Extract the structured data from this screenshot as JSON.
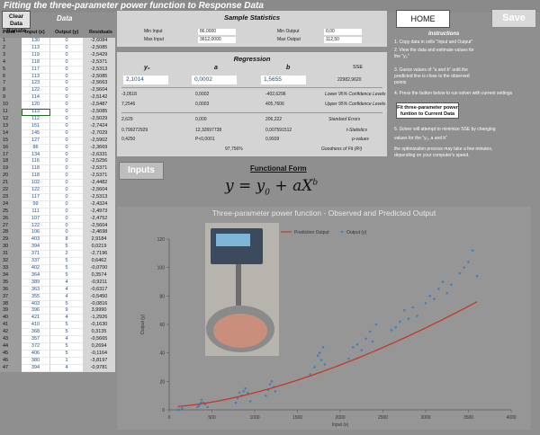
{
  "header": {
    "title": "Fitting the three-parameter power function to  Response Data"
  },
  "table_panel": {
    "clear_button": "Clear Data Ranate",
    "title": "Data",
    "columns": {
      "point": "Point",
      "input": "Input (x)",
      "output": "Output (y)",
      "residuals": "Residuals"
    },
    "rows": [
      {
        "p": "1",
        "x": "130",
        "y": "0",
        "r": "-2,6084"
      },
      {
        "p": "2",
        "x": "113",
        "y": "0",
        "r": "-2,5085"
      },
      {
        "p": "3",
        "x": "119",
        "y": "0",
        "r": "-2,5429"
      },
      {
        "p": "4",
        "x": "118",
        "y": "0",
        "r": "-2,5371"
      },
      {
        "p": "5",
        "x": "117",
        "y": "0",
        "r": "-2,5313"
      },
      {
        "p": "6",
        "x": "113",
        "y": "0",
        "r": "-2,5085"
      },
      {
        "p": "7",
        "x": "123",
        "y": "0",
        "r": "-2,5663"
      },
      {
        "p": "8",
        "x": "122",
        "y": "0",
        "r": "-2,5604"
      },
      {
        "p": "9",
        "x": "114",
        "y": "0",
        "r": "-2,5142"
      },
      {
        "p": "10",
        "x": "120",
        "y": "0",
        "r": "-2,5487"
      },
      {
        "p": "11",
        "x": "113",
        "y": "0",
        "r": "-2,5085"
      },
      {
        "p": "12",
        "x": "112",
        "y": "0",
        "r": "-2,5029"
      },
      {
        "p": "13",
        "x": "151",
        "y": "0",
        "r": "-2,7424"
      },
      {
        "p": "14",
        "x": "145",
        "y": "0",
        "r": "-2,7029"
      },
      {
        "p": "15",
        "x": "127",
        "y": "0",
        "r": "-2,5902"
      },
      {
        "p": "16",
        "x": "86",
        "y": "0",
        "r": "-2,3669"
      },
      {
        "p": "17",
        "x": "134",
        "y": "0",
        "r": "-2,6331"
      },
      {
        "p": "18",
        "x": "116",
        "y": "0",
        "r": "-2,5256"
      },
      {
        "p": "19",
        "x": "118",
        "y": "0",
        "r": "-2,5371"
      },
      {
        "p": "20",
        "x": "118",
        "y": "0",
        "r": "-2,5371"
      },
      {
        "p": "21",
        "x": "102",
        "y": "0",
        "r": "-2,4482"
      },
      {
        "p": "22",
        "x": "122",
        "y": "0",
        "r": "-2,5604"
      },
      {
        "p": "23",
        "x": "117",
        "y": "0",
        "r": "-2,5313"
      },
      {
        "p": "24",
        "x": "99",
        "y": "0",
        "r": "-2,4324"
      },
      {
        "p": "25",
        "x": "111",
        "y": "0",
        "r": "-2,4973"
      },
      {
        "p": "26",
        "x": "107",
        "y": "0",
        "r": "-2,4752"
      },
      {
        "p": "27",
        "x": "122",
        "y": "0",
        "r": "-2,5604"
      },
      {
        "p": "28",
        "x": "106",
        "y": "0",
        "r": "-2,4698"
      },
      {
        "p": "29",
        "x": "403",
        "y": "8",
        "r": "2,9184"
      },
      {
        "p": "30",
        "x": "394",
        "y": "5",
        "r": "0,0219"
      },
      {
        "p": "31",
        "x": "371",
        "y": "2",
        "r": "-2,7196"
      },
      {
        "p": "32",
        "x": "337",
        "y": "5",
        "r": "0,6462"
      },
      {
        "p": "33",
        "x": "402",
        "y": "5",
        "r": "-0,0700"
      },
      {
        "p": "34",
        "x": "364",
        "y": "5",
        "r": "0,3574"
      },
      {
        "p": "35",
        "x": "389",
        "y": "4",
        "r": "-0,9211"
      },
      {
        "p": "36",
        "x": "363",
        "y": "4",
        "r": "-0,6317"
      },
      {
        "p": "37",
        "x": "355",
        "y": "4",
        "r": "-0,5450"
      },
      {
        "p": "38",
        "x": "403",
        "y": "5",
        "r": "-0,0816"
      },
      {
        "p": "39",
        "x": "396",
        "y": "9",
        "r": "3,9990"
      },
      {
        "p": "40",
        "x": "421",
        "y": "4",
        "r": "-1,2926"
      },
      {
        "p": "41",
        "x": "410",
        "y": "5",
        "r": "-0,1630"
      },
      {
        "p": "42",
        "x": "368",
        "y": "5",
        "r": "0,3135"
      },
      {
        "p": "43",
        "x": "357",
        "y": "4",
        "r": "-0,5665"
      },
      {
        "p": "44",
        "x": "372",
        "y": "5",
        "r": "0,2694"
      },
      {
        "p": "45",
        "x": "406",
        "y": "5",
        "r": "-0,1164"
      },
      {
        "p": "46",
        "x": "380",
        "y": "1",
        "r": "-3,8197"
      },
      {
        "p": "47",
        "x": "394",
        "y": "4",
        "r": "-0,9781"
      }
    ]
  },
  "stats": {
    "title": "Sample Statistics",
    "min_input_label": "Min Input",
    "min_input": "86,0000",
    "max_input_label": "Max Input",
    "max_input": "3612,0000",
    "min_output_label": "Min Output",
    "min_output": "0,00",
    "max_output_label": "Max Output",
    "max_output": "112,50"
  },
  "regression": {
    "title": "Regression",
    "hdr_y0": "y₀",
    "hdr_a": "a",
    "hdr_b": "b",
    "hdr_sse": "SSE",
    "y0": "2,1014",
    "a": "0,0002",
    "b": "1,5655",
    "sse": "22982,9620",
    "lower": [
      "-3,0518",
      "0,0002",
      "-402,6296"
    ],
    "lower_label": "Lower 95% Confidence Levels",
    "upper": [
      "7,2546",
      "0,0003",
      "405,7606"
    ],
    "upper_label": "Upper 95% Confidence Levels",
    "se": [
      "2,629",
      "0,000",
      "206,222"
    ],
    "se_label": "Standard Errors",
    "t": [
      "0,799272929",
      "12,32697738",
      "0,007591512"
    ],
    "t_label": "t-Statistics",
    "p": [
      "0,4250",
      "P<0,0001",
      "0,9939"
    ],
    "p_label": "p-values",
    "gof": "97,756%",
    "gof_label": "Goodness of Fit (R²)"
  },
  "buttons": {
    "home": "HOME",
    "save": "Save",
    "fit": "Fit three-parameter power funtion to Current Data",
    "inputs": "Inputs"
  },
  "instructions": {
    "title": "Instructions",
    "step1": "1. Copy data in cells \"Input and Output\"",
    "step2a": "2. View the data and estimate values for",
    "step2b": "the \"y₀\"",
    "step3a": "3. Guess values of \"a and b\" until the",
    "step3b": "predicted line is close to the observed",
    "step3c": "points",
    "step4": "4. Press the button below to run solver with current settings",
    "step5a": "5. Solver will attempt to minimize SSE by changing",
    "step5b": "values for the \"y₀, a and b\"",
    "step5c": "the optimization process may take a few minutes,",
    "step5d": "depending on your computer's speed."
  },
  "functional_form": {
    "title": "Functional Form",
    "f_y": "y",
    "f_eq": " = ",
    "f_y0": "y",
    "f_0": "0",
    "f_plus": " + a",
    "f_x": "X",
    "f_b": "b"
  },
  "colors": {
    "prediction": "#c0392b",
    "output": "#4a7fb5",
    "background": "#8f8f8f"
  },
  "chart_data": {
    "type": "scatter",
    "title": "Three-parameter power function - Observed and Predicted Output",
    "xlabel": "Input (x)",
    "ylabel": "Output (y)",
    "xlim": [
      0,
      4000
    ],
    "ylim": [
      0,
      120
    ],
    "x_ticks": [
      "0",
      "500",
      "1000",
      "1500",
      "2000",
      "2500",
      "3000",
      "3500",
      "4000"
    ],
    "y_ticks": [
      "0",
      "20",
      "40",
      "60",
      "80",
      "100",
      "120"
    ],
    "legend": [
      "Prediction Output",
      "Output (y)"
    ],
    "series": [
      {
        "name": "Output (y)",
        "kind": "scatter",
        "points": [
          [
            100,
            0
          ],
          [
            110,
            0
          ],
          [
            120,
            0
          ],
          [
            150,
            1
          ],
          [
            330,
            2
          ],
          [
            350,
            3
          ],
          [
            370,
            5
          ],
          [
            380,
            7
          ],
          [
            400,
            5
          ],
          [
            420,
            4
          ],
          [
            450,
            2
          ],
          [
            780,
            5
          ],
          [
            800,
            8
          ],
          [
            820,
            12
          ],
          [
            850,
            10
          ],
          [
            870,
            13
          ],
          [
            890,
            15
          ],
          [
            920,
            12
          ],
          [
            950,
            6
          ],
          [
            1130,
            10
          ],
          [
            1160,
            14
          ],
          [
            1180,
            18
          ],
          [
            1200,
            20
          ],
          [
            1220,
            16
          ],
          [
            1240,
            13
          ],
          [
            1650,
            25
          ],
          [
            1700,
            30
          ],
          [
            1740,
            38
          ],
          [
            1760,
            40
          ],
          [
            1780,
            35
          ],
          [
            1800,
            44
          ],
          [
            1820,
            32
          ],
          [
            2100,
            36
          ],
          [
            2150,
            44
          ],
          [
            2200,
            46
          ],
          [
            2250,
            42
          ],
          [
            2300,
            50
          ],
          [
            2350,
            55
          ],
          [
            2380,
            48
          ],
          [
            2420,
            60
          ],
          [
            2600,
            56
          ],
          [
            2650,
            58
          ],
          [
            2700,
            62
          ],
          [
            2750,
            70
          ],
          [
            2800,
            64
          ],
          [
            2850,
            72
          ],
          [
            2900,
            66
          ],
          [
            3000,
            75
          ],
          [
            3050,
            80
          ],
          [
            3100,
            78
          ],
          [
            3150,
            85
          ],
          [
            3200,
            90
          ],
          [
            3250,
            82
          ],
          [
            3300,
            88
          ],
          [
            3400,
            96
          ],
          [
            3450,
            100
          ],
          [
            3500,
            104
          ],
          [
            3550,
            112
          ],
          [
            3600,
            94
          ]
        ]
      },
      {
        "name": "Prediction Output",
        "kind": "line",
        "params": {
          "y0": 2.1014,
          "a": 0.0002,
          "b": 1.5655
        }
      }
    ]
  }
}
